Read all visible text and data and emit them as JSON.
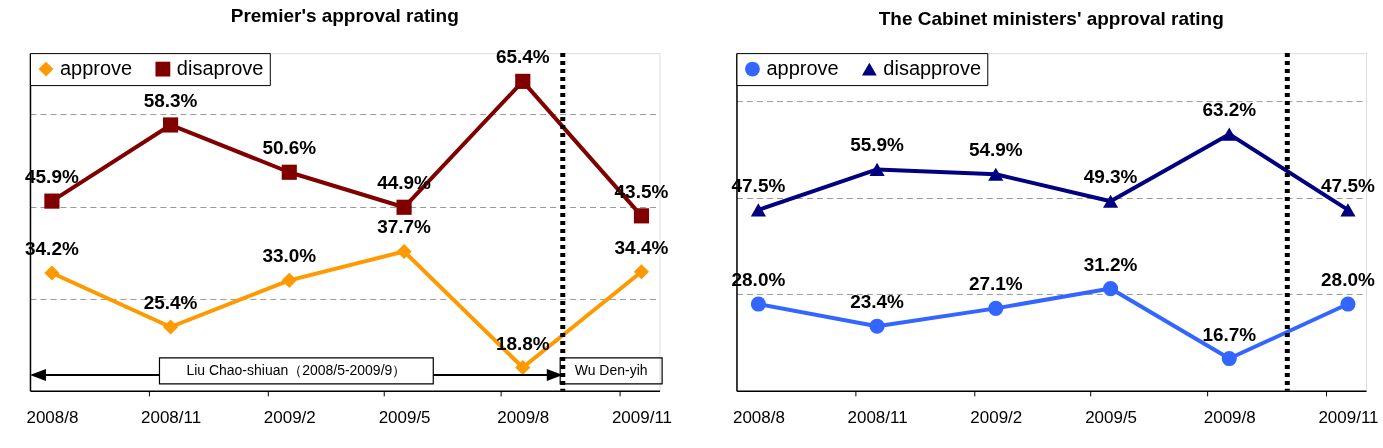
{
  "chart_data": [
    {
      "type": "line",
      "title": "Premier's approval rating",
      "x": [
        "2008-08",
        "2008-11",
        "2009-02",
        "2009-05",
        "2009-08",
        "2009-11"
      ],
      "series": [
        {
          "name": "approve",
          "color": "#ff9900",
          "marker": "diamond",
          "values": [
            34.2,
            25.4,
            33.0,
            37.7,
            18.8,
            34.4
          ],
          "value_labels": [
            "34.2%",
            "25.4%",
            "33.0%",
            "37.7%",
            "18.8%",
            "34.4%"
          ]
        },
        {
          "name": "disaprove",
          "color": "#800000",
          "marker": "square",
          "values": [
            45.9,
            58.3,
            50.6,
            44.9,
            65.4,
            43.5
          ],
          "value_labels": [
            "45.9%",
            "58.3%",
            "50.6%",
            "44.9%",
            "65.4%",
            "43.5%"
          ]
        }
      ],
      "xlim": [
        "2008-07-15",
        "2009-11-15"
      ],
      "xticks": [
        {
          "value": "2008-08",
          "label": "2008/8"
        },
        {
          "value": "2008-10-15",
          "label": null
        },
        {
          "value": "2008-11",
          "label": "2008/11"
        },
        {
          "value": "2009-01-15",
          "label": null
        },
        {
          "value": "2009-02",
          "label": "2009/2"
        },
        {
          "value": "2009-04-15",
          "label": null
        },
        {
          "value": "2009-05",
          "label": "2009/5"
        },
        {
          "value": "2009-07-15",
          "label": null
        },
        {
          "value": "2009-08",
          "label": "2009/8"
        },
        {
          "value": "2009-10-15",
          "label": null
        },
        {
          "value": "2009-11",
          "label": "2009/11"
        }
      ],
      "ylim": [
        15,
        70
      ],
      "yticks": [
        30,
        45,
        60
      ],
      "tick_labels": "x",
      "grid": "y",
      "legend": "top left",
      "line_style": "solid",
      "ref_lines": [
        {
          "axis": "x",
          "value": "2009-09",
          "color": "#000000",
          "line_style": "dotted"
        }
      ],
      "annotations": [
        "Liu Chao-shiuan（2008/5-2009/9）",
        "Wu Den-yih"
      ]
    },
    {
      "type": "line",
      "title": "The Cabinet ministers' approval rating",
      "x": [
        "2008-08",
        "2008-11",
        "2009-02",
        "2009-05",
        "2009-08",
        "2009-11"
      ],
      "series": [
        {
          "name": "approve",
          "color": "#3366ff",
          "marker": "circle",
          "values": [
            28.0,
            23.4,
            27.1,
            31.2,
            16.7,
            28.0
          ],
          "value_labels": [
            "28.0%",
            "23.4%",
            "27.1%",
            "31.2%",
            "16.7%",
            "28.0%"
          ]
        },
        {
          "name": "disapprove",
          "color": "#000080",
          "marker": "triangle",
          "values": [
            47.5,
            55.9,
            54.9,
            49.3,
            63.2,
            47.5
          ],
          "value_labels": [
            "47.5%",
            "55.9%",
            "54.9%",
            "49.3%",
            "63.2%",
            "47.5%"
          ]
        }
      ],
      "xlim": [
        "2008-07-15",
        "2009-11-15"
      ],
      "xticks": [
        {
          "value": "2008-08",
          "label": "2008/8"
        },
        {
          "value": "2008-10-15",
          "label": null
        },
        {
          "value": "2008-11",
          "label": "2008/11"
        },
        {
          "value": "2009-01-15",
          "label": null
        },
        {
          "value": "2009-02",
          "label": "2009/2"
        },
        {
          "value": "2009-04-15",
          "label": null
        },
        {
          "value": "2009-05",
          "label": "2009/5"
        },
        {
          "value": "2009-07-15",
          "label": null
        },
        {
          "value": "2009-08",
          "label": "2009/8"
        },
        {
          "value": "2009-10-15",
          "label": null
        },
        {
          "value": "2009-11",
          "label": "2009/11"
        }
      ],
      "ylim": [
        10,
        80
      ],
      "yticks": [
        30,
        50,
        70
      ],
      "tick_labels": "x",
      "grid": "y",
      "legend": "top left",
      "line_style": "solid",
      "ref_lines": [
        {
          "axis": "x",
          "value": "2009-09-15",
          "color": "#000000",
          "line_style": "dotted"
        }
      ]
    }
  ]
}
